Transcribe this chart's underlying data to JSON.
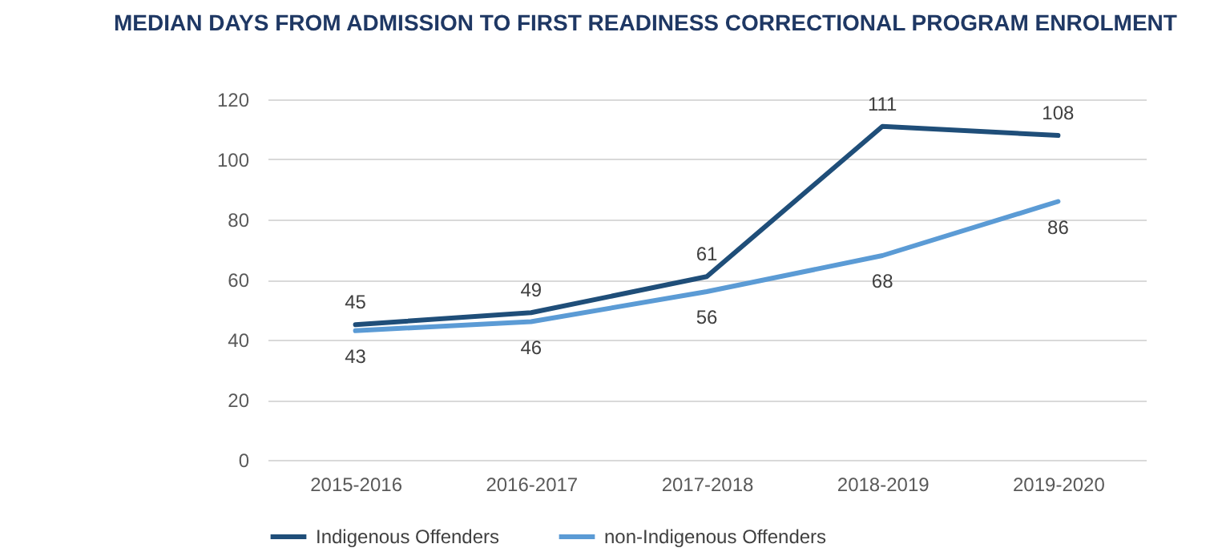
{
  "chart_data": {
    "type": "line",
    "title": "MEDIAN DAYS FROM ADMISSION TO FIRST READINESS CORRECTIONAL PROGRAM ENROLMENT",
    "categories": [
      "2015-2016",
      "2016-2017",
      "2017-2018",
      "2018-2019",
      "2019-2020"
    ],
    "series": [
      {
        "name": "Indigenous Offenders",
        "color": "#1f4e79",
        "values": [
          45,
          49,
          61,
          111,
          108
        ]
      },
      {
        "name": "non-Indigenous Offenders",
        "color": "#5b9bd5",
        "values": [
          43,
          46,
          56,
          68,
          86
        ]
      }
    ],
    "ylim": [
      0,
      120
    ],
    "yticks": [
      0,
      20,
      40,
      60,
      80,
      100,
      120
    ],
    "grid": "y",
    "legend": "bottom",
    "data_labels": true
  }
}
